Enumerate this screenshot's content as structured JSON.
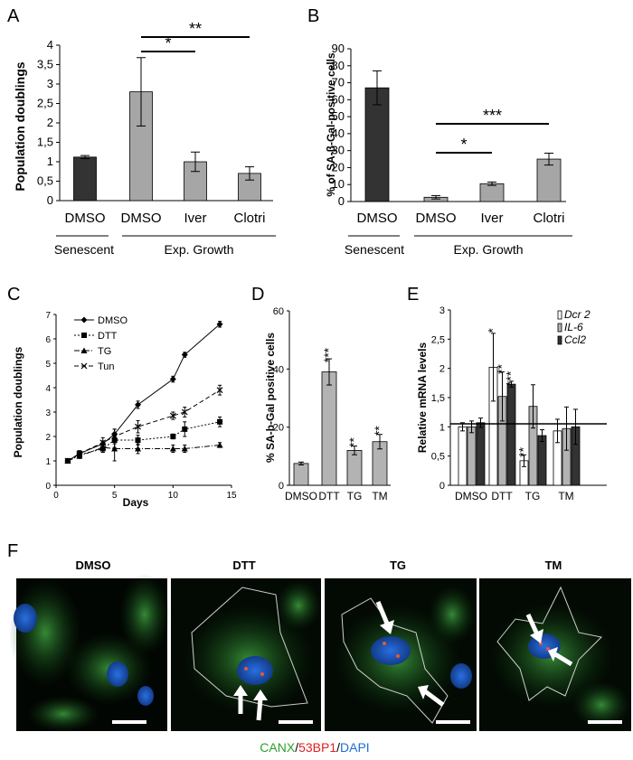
{
  "panelA": {
    "letter": "A",
    "ylabel": "Population doublings",
    "yticks": [
      "0",
      "0,5",
      "1",
      "1,5",
      "2",
      "2,5",
      "3",
      "3,5",
      "4"
    ],
    "ylim": [
      0,
      4
    ],
    "bars": [
      {
        "label": "DMSO",
        "value": 1.12,
        "err": 0.04,
        "color": "#333333"
      },
      {
        "label": "DMSO",
        "value": 2.8,
        "err": 0.88,
        "color": "#a6a6a6"
      },
      {
        "label": "Iver",
        "value": 1.0,
        "err": 0.25,
        "color": "#a6a6a6"
      },
      {
        "label": "Clotri",
        "value": 0.7,
        "err": 0.17,
        "color": "#a6a6a6"
      }
    ],
    "sig": [
      {
        "from": 1,
        "to": 2,
        "stars": "*"
      },
      {
        "from": 1,
        "to": 3,
        "stars": "**"
      }
    ],
    "groups": [
      "Senescent",
      "Exp. Growth"
    ]
  },
  "panelB": {
    "letter": "B",
    "ylabel": "% of SA-β-Gal-positive cells",
    "yticks": [
      "0",
      "10",
      "20",
      "30",
      "40",
      "50",
      "60",
      "70",
      "80",
      "90"
    ],
    "ylim": [
      0,
      90
    ],
    "bars": [
      {
        "label": "DMSO",
        "value": 67,
        "err": 10,
        "color": "#333333"
      },
      {
        "label": "DMSO",
        "value": 2.5,
        "err": 1,
        "color": "#a6a6a6"
      },
      {
        "label": "Iver",
        "value": 10.5,
        "err": 1,
        "color": "#a6a6a6"
      },
      {
        "label": "Clotri",
        "value": 25,
        "err": 3.5,
        "color": "#a6a6a6"
      }
    ],
    "sig": [
      {
        "from": 1,
        "to": 2,
        "stars": "*"
      },
      {
        "from": 1,
        "to": 3,
        "stars": "***"
      }
    ],
    "groups": [
      "Senescent",
      "Exp. Growth"
    ]
  },
  "panelC": {
    "letter": "C",
    "ylabel": "Population doublings",
    "xlabel": "Days",
    "xticks": [
      "0",
      "5",
      "10",
      "15"
    ],
    "yticks": [
      "0",
      "1",
      "2",
      "3",
      "4",
      "5",
      "6",
      "7"
    ],
    "xlim": [
      0,
      15
    ],
    "ylim": [
      0,
      7
    ],
    "x": [
      1,
      2,
      4,
      5,
      7,
      10,
      11,
      14
    ],
    "series": [
      {
        "name": "DMSO",
        "values": [
          1.0,
          1.3,
          1.7,
          2.1,
          3.3,
          4.35,
          5.35,
          6.6
        ],
        "err": [
          0.05,
          0.12,
          0.12,
          0.2,
          0.15,
          0.12,
          0.1,
          0.12
        ],
        "dash": "",
        "marker": "diamond"
      },
      {
        "name": "DTT",
        "values": [
          1.0,
          1.25,
          1.5,
          1.85,
          1.85,
          2.0,
          2.3,
          2.6
        ],
        "err": [
          0.05,
          0.1,
          0.15,
          0.3,
          0.2,
          0.1,
          0.3,
          0.2
        ],
        "dash": "2,2",
        "marker": "square"
      },
      {
        "name": "TG",
        "values": [
          1.0,
          1.2,
          1.55,
          1.5,
          1.5,
          1.5,
          1.5,
          1.65
        ],
        "err": [
          0.05,
          0.1,
          0.2,
          0.5,
          0.2,
          0.15,
          0.15,
          0.1
        ],
        "dash": "6,2,1,2",
        "marker": "triangle"
      },
      {
        "name": "Tun",
        "values": [
          1.0,
          1.3,
          1.75,
          2.0,
          2.4,
          2.85,
          3.0,
          3.9
        ],
        "err": [
          0.05,
          0.1,
          0.2,
          0.3,
          0.25,
          0.15,
          0.2,
          0.2
        ],
        "dash": "5,3",
        "marker": "x"
      }
    ]
  },
  "panelD": {
    "letter": "D",
    "ylabel": "% SA-b-Gal positive cells",
    "yticks": [
      "0",
      "20",
      "40",
      "60"
    ],
    "ylim": [
      0,
      60
    ],
    "bars": [
      {
        "label": "DMSO",
        "value": 7.5,
        "err": 0.5,
        "stars": ""
      },
      {
        "label": "DTT",
        "value": 39,
        "err": 4.5,
        "stars": "***"
      },
      {
        "label": "TG",
        "value": 12,
        "err": 1.5,
        "stars": "**"
      },
      {
        "label": "TM",
        "value": 15,
        "err": 2.5,
        "stars": "**"
      }
    ],
    "color": "#b3b3b3"
  },
  "panelE": {
    "letter": "E",
    "ylabel": "Relative mRNA levels",
    "yticks": [
      "0",
      "0,5",
      "1",
      "1,5",
      "2",
      "2,5",
      "3"
    ],
    "ylim": [
      0,
      3
    ],
    "categories": [
      "DMSO",
      "DTT",
      "TG",
      "TM"
    ],
    "legend": [
      "Dcr 2",
      "IL-6",
      "Ccl2"
    ],
    "series_colors": [
      "#ffffff",
      "#b3b3b3",
      "#333333"
    ],
    "values": [
      [
        1.0,
        1.0,
        1.07
      ],
      [
        2.02,
        1.52,
        1.73
      ],
      [
        0.42,
        1.35,
        0.85
      ],
      [
        0.93,
        0.97,
        1.0
      ]
    ],
    "errs": [
      [
        0.07,
        0.1,
        0.08
      ],
      [
        0.58,
        0.42,
        0.05
      ],
      [
        0.1,
        0.37,
        0.1
      ],
      [
        0.2,
        0.37,
        0.3
      ]
    ],
    "stars": [
      [
        "",
        "",
        ""
      ],
      [
        "*",
        "**",
        "***"
      ],
      [
        "**",
        "",
        ""
      ],
      [
        "",
        "",
        ""
      ]
    ]
  },
  "panelF": {
    "letter": "F",
    "panels": [
      "DMSO",
      "DTT",
      "TG",
      "TM"
    ],
    "caption_canx": "CANX",
    "caption_53bp1": "53BP1",
    "caption_dapi": "DAPI",
    "color_canx": "#2ca02c",
    "color_53bp1": "#e02020",
    "color_dapi": "#1f6fd0"
  }
}
